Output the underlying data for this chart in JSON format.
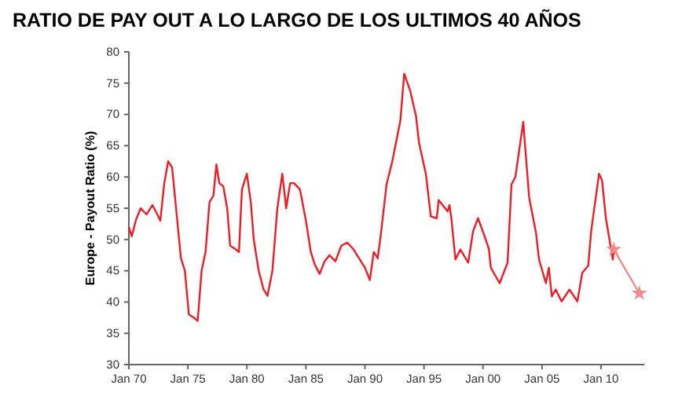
{
  "chart_data": {
    "type": "line",
    "title": "RATIO DE PAY OUT A LO LARGO DE LOS ULTIMOS 40 AÑOS",
    "ylabel": "Europe - Payout Ratio (%)",
    "ylim": [
      30,
      80
    ],
    "yticks": [
      30,
      35,
      40,
      45,
      50,
      55,
      60,
      65,
      70,
      75,
      80
    ],
    "xlim": [
      "1970-01",
      "2013-09"
    ],
    "xticks": [
      {
        "value": "1970-01",
        "label": "Jan 70"
      },
      {
        "value": "1975-01",
        "label": "Jan 75"
      },
      {
        "value": "1980-01",
        "label": "Jan 80"
      },
      {
        "value": "1985-01",
        "label": "Jan 85"
      },
      {
        "value": "1990-01",
        "label": "Jan 90"
      },
      {
        "value": "1995-01",
        "label": "Jan 95"
      },
      {
        "value": "2000-01",
        "label": "Jan 00"
      },
      {
        "value": "2005-01",
        "label": "Jan 05"
      },
      {
        "value": "2010-01",
        "label": "Jan 10"
      }
    ],
    "grid": false,
    "series": [
      {
        "color": "#ee1c25",
        "marker": "none",
        "line_style": "solid",
        "x": [
          "1970-01",
          "1970-04",
          "1970-08",
          "1971-01",
          "1971-07",
          "1972-01",
          "1972-06",
          "1972-09",
          "1973-01",
          "1973-05",
          "1973-09",
          "1974-01",
          "1974-06",
          "1974-10",
          "1975-02",
          "1975-07",
          "1975-11",
          "1976-03",
          "1976-07",
          "1976-11",
          "1977-03",
          "1977-06",
          "1977-09",
          "1978-01",
          "1978-05",
          "1978-08",
          "1979-01",
          "1979-05",
          "1979-08",
          "1980-01",
          "1980-05",
          "1980-08",
          "1981-01",
          "1981-06",
          "1981-10",
          "1982-03",
          "1982-08",
          "1983-01",
          "1983-05",
          "1983-09",
          "1984-01",
          "1984-07",
          "1985-01",
          "1985-06",
          "1985-10",
          "1986-03",
          "1986-08",
          "1987-01",
          "1987-07",
          "1988-01",
          "1988-07",
          "1989-01",
          "1989-07",
          "1990-01",
          "1990-06",
          "1990-10",
          "1991-02",
          "1991-05",
          "1991-11",
          "1992-05",
          "1993-01",
          "1993-05",
          "1993-11",
          "1994-05",
          "1994-08",
          "1995-03",
          "1995-08",
          "1996-02",
          "1996-04",
          "1997-01",
          "1997-03",
          "1997-05",
          "1997-09",
          "1998-02",
          "1998-10",
          "1999-03",
          "1999-08",
          "2000-02",
          "2000-07",
          "2000-09",
          "2001-06",
          "2002-02",
          "2002-06",
          "2002-10",
          "2003-06",
          "2003-08",
          "2003-12",
          "2004-07",
          "2004-10",
          "2005-05",
          "2005-08",
          "2005-11",
          "2006-03",
          "2006-09",
          "2007-05",
          "2008-01",
          "2008-06",
          "2008-12",
          "2009-03",
          "2009-11",
          "2010-02",
          "2010-06",
          "2011-01",
          "2011-02"
        ],
        "values": [
          52,
          50.5,
          53,
          55,
          54,
          55.5,
          54,
          53,
          59,
          62.5,
          61.5,
          55,
          47,
          45,
          38,
          37.5,
          37,
          45,
          48,
          56,
          57,
          62,
          59,
          58.5,
          55,
          49,
          48.5,
          48,
          58,
          60.5,
          56,
          50,
          45,
          42,
          41,
          45,
          55,
          60.5,
          55,
          59,
          59,
          58,
          53,
          48,
          46,
          44.5,
          46.5,
          47.5,
          46.5,
          49,
          49.5,
          48.5,
          47,
          45.5,
          43.5,
          48,
          47,
          50.5,
          58.8,
          62.6,
          69,
          76.5,
          73.8,
          69.7,
          65.5,
          60.5,
          53.7,
          53.4,
          56.3,
          54.5,
          55.5,
          53.3,
          46.8,
          48.4,
          46.3,
          51.3,
          53.4,
          50.8,
          48.5,
          45.5,
          43,
          46.3,
          58.8,
          60,
          68.8,
          64.7,
          56.7,
          51,
          46.8,
          43,
          45.5,
          40.9,
          42,
          40.1,
          42,
          40.1,
          44.7,
          45.8,
          51.3,
          60.5,
          59.5,
          53.4,
          46.8,
          48.4
        ]
      },
      {
        "color": "#f08a8a",
        "marker": "star",
        "line_style": "solid",
        "x": [
          "2011-02",
          "2013-04"
        ],
        "values": [
          48.4,
          41.4
        ]
      }
    ]
  }
}
